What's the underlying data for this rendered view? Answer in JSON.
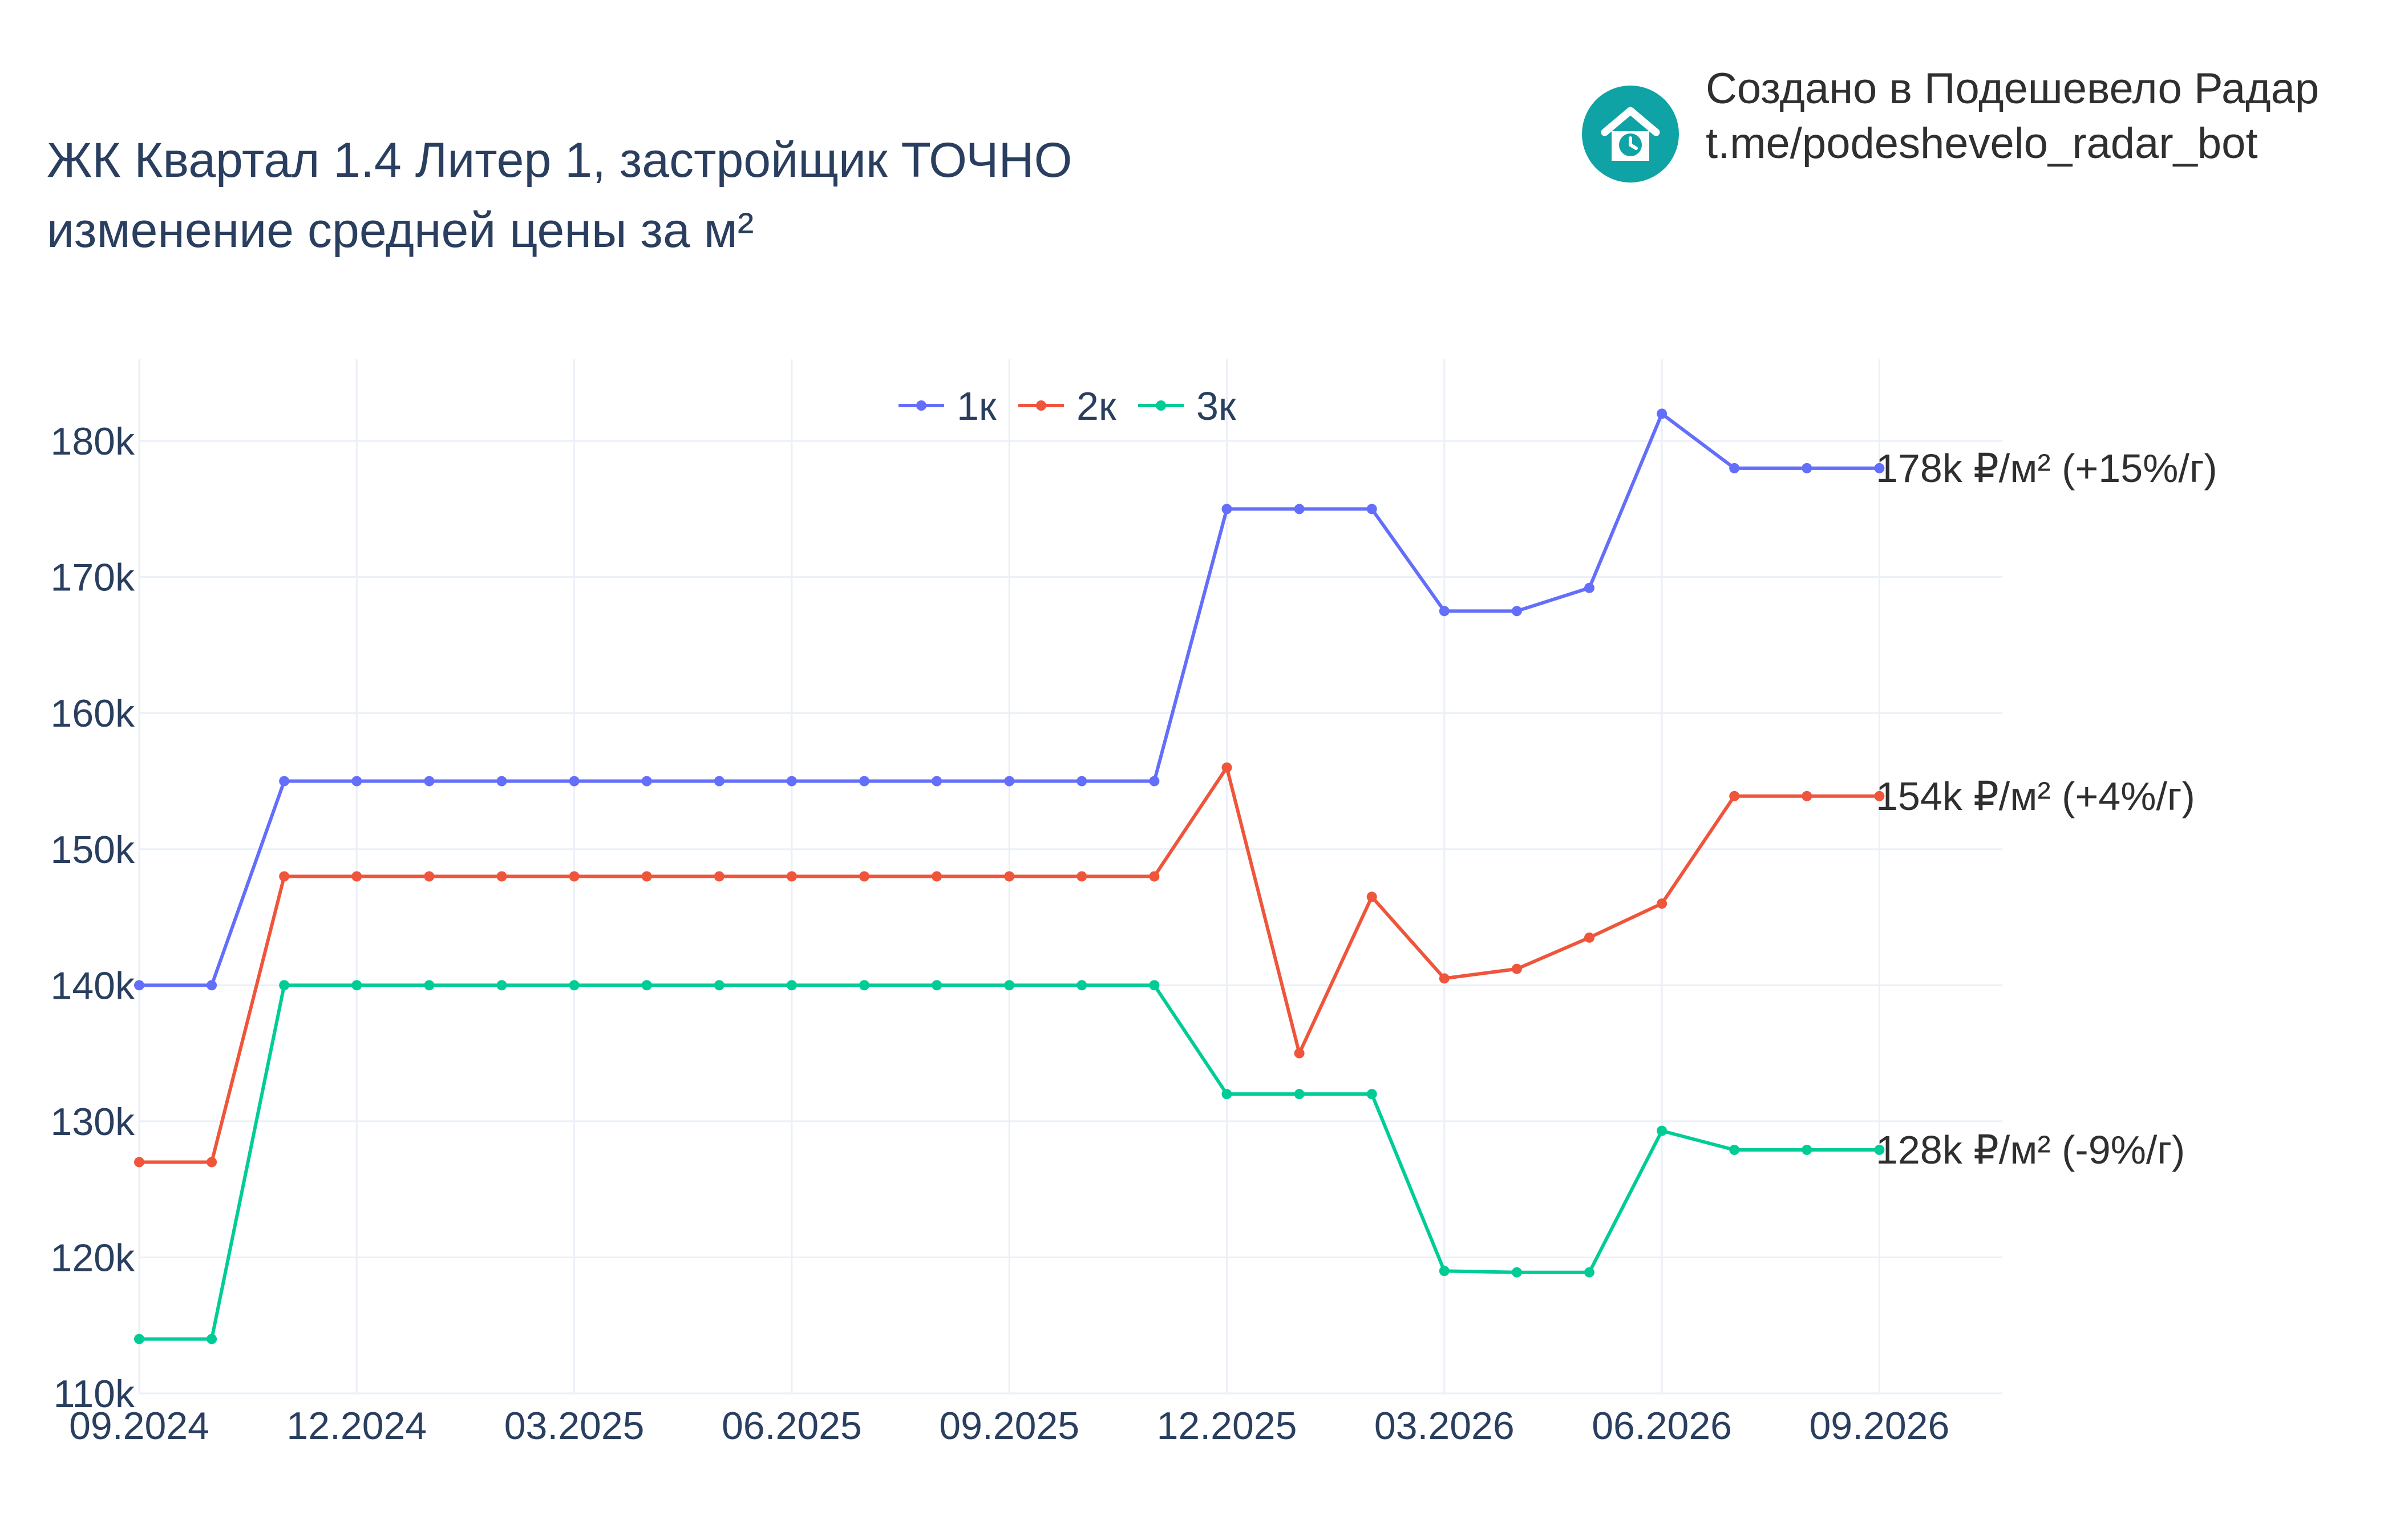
{
  "title": {
    "line1": "ЖК Квартал 1.4 Литер 1, застройщик ТОЧНО",
    "line2": "изменение средней цены за м²"
  },
  "brand": {
    "line1": "Создано в Подешевело Радар",
    "line2": "t.me/podeshevelo_radar_bot",
    "icon": "house-clock-icon",
    "color": "#0fa3a6"
  },
  "chart_data": {
    "type": "line",
    "x": [
      "09.2024",
      "10.2024",
      "11.2024",
      "12.2024",
      "01.2025",
      "02.2025",
      "03.2025",
      "04.2025",
      "05.2025",
      "06.2025",
      "07.2025",
      "08.2025",
      "09.2025",
      "10.2025",
      "11.2025",
      "12.2025",
      "01.2026",
      "02.2026",
      "03.2026",
      "04.2026",
      "05.2026",
      "06.2026",
      "07.2026",
      "08.2026",
      "09.2026"
    ],
    "x_tick_labels": [
      "09.2024",
      "12.2024",
      "03.2025",
      "06.2025",
      "09.2025",
      "12.2025",
      "03.2026",
      "06.2026",
      "09.2026"
    ],
    "y_tick_labels": [
      "110k",
      "120k",
      "130k",
      "140k",
      "150k",
      "160k",
      "170k",
      "180k"
    ],
    "ylim": [
      110000,
      186000
    ],
    "grid": true,
    "legend_position": "top-center",
    "series": [
      {
        "name": "1к",
        "color": "#636efa",
        "values": [
          140000,
          140000,
          155000,
          155000,
          155000,
          155000,
          155000,
          155000,
          155000,
          155000,
          155000,
          155000,
          155000,
          155000,
          155000,
          175000,
          175000,
          175000,
          167500,
          167500,
          169200,
          182000,
          178000,
          178000,
          178000
        ],
        "end_label": "178k ₽/м² (+15%/г)"
      },
      {
        "name": "2к",
        "color": "#ef553b",
        "values": [
          127000,
          127000,
          148000,
          148000,
          148000,
          148000,
          148000,
          148000,
          148000,
          148000,
          148000,
          148000,
          148000,
          148000,
          148000,
          156000,
          135000,
          146500,
          140500,
          141200,
          143500,
          146000,
          153900,
          153900,
          153900
        ],
        "end_label": "154k ₽/м² (+4%/г)"
      },
      {
        "name": "3к",
        "color": "#00cc96",
        "values": [
          114000,
          114000,
          140000,
          140000,
          140000,
          140000,
          140000,
          140000,
          140000,
          140000,
          140000,
          140000,
          140000,
          140000,
          140000,
          132000,
          132000,
          132000,
          119000,
          118900,
          118900,
          129300,
          127900,
          127900,
          127900
        ],
        "end_label": "128k ₽/м² (-9%/г)"
      }
    ]
  }
}
